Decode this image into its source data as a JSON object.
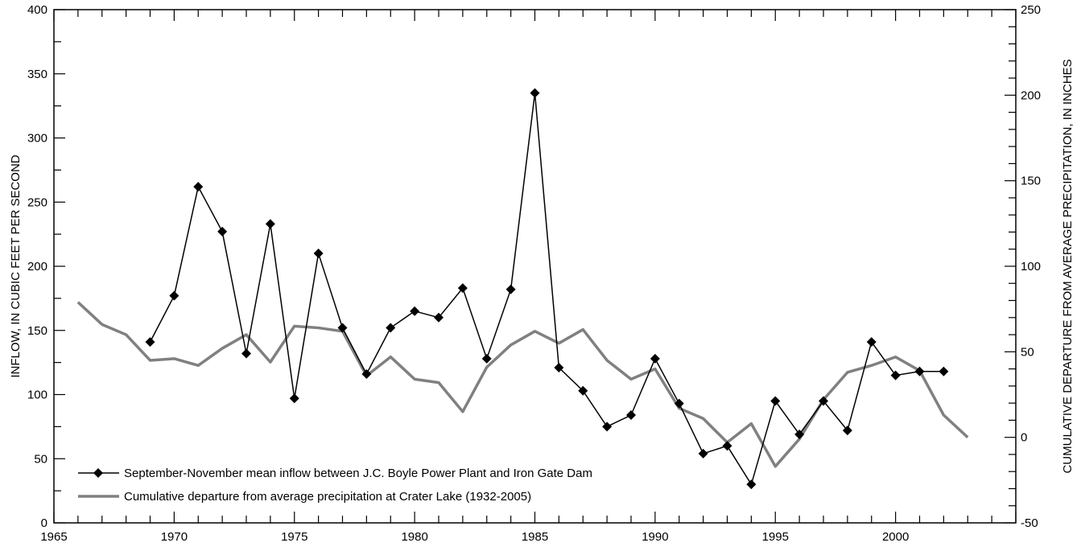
{
  "chart_data": {
    "type": "line",
    "title": "",
    "xlabel": "",
    "ylabel_left": "INFLOW, IN CUBIC FEET PER SECOND",
    "ylabel_right": "CUMULATIVE DEPARTURE FROM AVERAGE PRECIPITATION, IN INCHES",
    "xlim": [
      1965,
      2005
    ],
    "ylim_left": [
      0,
      400
    ],
    "ylim_right": [
      -50,
      250
    ],
    "x_ticks": [
      1965,
      1970,
      1975,
      1980,
      1985,
      1990,
      1995,
      2000
    ],
    "y_ticks_left": [
      0,
      50,
      100,
      150,
      200,
      250,
      300,
      350,
      400
    ],
    "y_ticks_right": [
      -50,
      0,
      50,
      100,
      150,
      200,
      250
    ],
    "grid": false,
    "legend_position": "bottom-left",
    "series": [
      {
        "name": "September-November mean inflow between J.C. Boyle Power Plant and Iron Gate Dam",
        "axis": "left",
        "color": "#000000",
        "marker": "diamond",
        "x": [
          1969,
          1970,
          1971,
          1972,
          1973,
          1974,
          1975,
          1976,
          1977,
          1978,
          1979,
          1980,
          1981,
          1982,
          1983,
          1984,
          1985,
          1986,
          1987,
          1988,
          1989,
          1990,
          1991,
          1992,
          1993,
          1994,
          1995,
          1996,
          1997,
          1998,
          1999,
          2000,
          2001,
          2002
        ],
        "values": [
          141,
          177,
          262,
          227,
          132,
          233,
          97,
          210,
          152,
          116,
          152,
          165,
          160,
          183,
          128,
          182,
          335,
          121,
          103,
          75,
          84,
          128,
          93,
          54,
          60,
          30,
          95,
          69,
          95,
          72,
          141,
          115,
          118,
          118
        ]
      },
      {
        "name": "Cumulative departure from average precipitation at Crater Lake (1932-2005)",
        "axis": "right",
        "color": "#808080",
        "marker": "none",
        "x": [
          1966,
          1967,
          1968,
          1969,
          1970,
          1971,
          1972,
          1973,
          1974,
          1975,
          1976,
          1977,
          1978,
          1979,
          1980,
          1981,
          1982,
          1983,
          1984,
          1985,
          1986,
          1987,
          1988,
          1989,
          1990,
          1991,
          1992,
          1993,
          1994,
          1995,
          1996,
          1997,
          1998,
          1999,
          2000,
          2001,
          2002,
          2003
        ],
        "values": [
          79,
          66,
          60,
          45,
          46,
          42,
          52,
          60,
          44,
          65,
          64,
          62,
          36,
          47,
          34,
          32,
          15,
          41,
          54,
          62,
          55,
          63,
          45,
          34,
          40,
          17,
          11,
          -3,
          8,
          -17,
          -1,
          22,
          38,
          42,
          47,
          39,
          13,
          0
        ]
      }
    ]
  }
}
